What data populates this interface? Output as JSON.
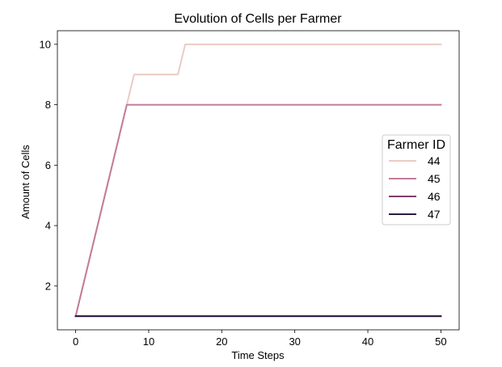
{
  "chart_data": {
    "type": "line",
    "title": "Evolution of Cells per Farmer",
    "xlabel": "Time Steps",
    "ylabel": "Amount of Cells",
    "xlim": [
      -2.5,
      52.5
    ],
    "ylim": [
      0.55,
      10.45
    ],
    "xticks": [
      0,
      10,
      20,
      30,
      40,
      50
    ],
    "yticks": [
      2,
      4,
      6,
      8,
      10
    ],
    "grid": false,
    "legend": {
      "title": "Farmer ID",
      "placement": "center-right"
    },
    "series": [
      {
        "name": "44",
        "color": "#ebcbc3",
        "points": [
          [
            0,
            1
          ],
          [
            7,
            8
          ],
          [
            8,
            9
          ],
          [
            14,
            9
          ],
          [
            15,
            10
          ],
          [
            50,
            10
          ]
        ]
      },
      {
        "name": "45",
        "color": "#c27b9a",
        "points": [
          [
            0,
            1
          ],
          [
            7,
            8
          ],
          [
            50,
            8
          ]
        ]
      },
      {
        "name": "46",
        "color": "#7c3e6e",
        "points": [
          [
            0,
            1
          ],
          [
            50,
            1
          ]
        ]
      },
      {
        "name": "47",
        "color": "#2b1b3f",
        "points": [
          [
            0,
            1
          ],
          [
            50,
            1
          ]
        ]
      }
    ]
  }
}
